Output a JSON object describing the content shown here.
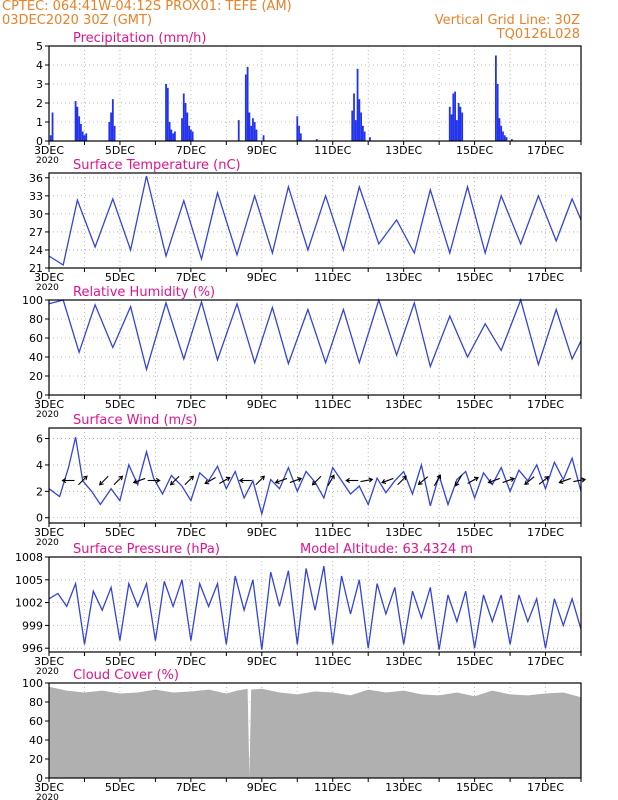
{
  "header": {
    "line1": "CPTEC:   064:41W-04:12S   PROX01: TEFE (AM)",
    "line2": "03DEC2020 30Z (GMT)",
    "grid_note": "Vertical Grid Line: 30Z",
    "model_id": "TQ0126L028",
    "model_altitude": "Model Altitude: 63.4324 m"
  },
  "colors": {
    "header": "#e6822a",
    "title": "#e0148c",
    "series": "#3344dd",
    "bar": "#2233ee",
    "cloud": "#b0b0b0",
    "arrow": "#000000",
    "frame": "#000000",
    "grid": "#aaaaaa"
  },
  "x_axis": {
    "days_start": 3,
    "days_end": 18,
    "tick_labels": [
      "3DEC",
      "5DEC",
      "7DEC",
      "9DEC",
      "11DEC",
      "13DEC",
      "15DEC",
      "17DEC"
    ],
    "tick_days": [
      3,
      5,
      7,
      9,
      11,
      13,
      15,
      17
    ],
    "corner_label": "2020"
  },
  "chart_data": [
    {
      "type": "bar",
      "name": "precip",
      "title": "Precipitation (mm/h)",
      "ylim": [
        0,
        5
      ],
      "yticks": [
        0,
        1,
        2,
        3,
        4,
        5
      ],
      "x": [
        3.05,
        3.1,
        3.75,
        3.8,
        3.85,
        3.9,
        3.95,
        4.0,
        4.05,
        4.7,
        4.75,
        4.8,
        4.85,
        6.3,
        6.35,
        6.4,
        6.45,
        6.5,
        6.55,
        6.75,
        6.8,
        6.85,
        6.9,
        6.95,
        7.0,
        7.05,
        8.35,
        8.55,
        8.6,
        8.65,
        8.7,
        8.75,
        8.8,
        8.85,
        9.05,
        10.0,
        10.05,
        10.1,
        10.55,
        11.55,
        11.6,
        11.65,
        11.7,
        11.75,
        11.8,
        11.85,
        11.9,
        12.05,
        14.3,
        14.35,
        14.4,
        14.45,
        14.5,
        14.55,
        14.6,
        14.65,
        15.6,
        15.65,
        15.7,
        15.75,
        15.8,
        15.85,
        15.9,
        16.05
      ],
      "values": [
        0.3,
        1.5,
        2.1,
        1.8,
        1.3,
        0.9,
        0.5,
        0.3,
        0.4,
        1.0,
        1.5,
        2.2,
        0.8,
        3.0,
        2.8,
        1.0,
        0.6,
        0.4,
        0.5,
        1.2,
        2.5,
        2.0,
        1.5,
        0.8,
        0.6,
        0.5,
        1.1,
        3.5,
        3.9,
        1.5,
        0.8,
        1.2,
        1.0,
        0.6,
        0.3,
        1.3,
        0.8,
        0.4,
        0.1,
        1.6,
        2.5,
        1.1,
        3.8,
        2.2,
        1.5,
        0.8,
        0.5,
        0.2,
        1.8,
        1.4,
        2.5,
        2.6,
        1.1,
        2.0,
        1.8,
        1.5,
        4.5,
        3.0,
        1.2,
        0.8,
        0.5,
        0.3,
        0.2,
        0.1
      ]
    },
    {
      "type": "line",
      "name": "temp",
      "title": "Surface Temperature (nC)",
      "ylim": [
        21,
        36.8
      ],
      "yticks": [
        21,
        24,
        27,
        30,
        33,
        36
      ],
      "x": [
        3.0,
        3.4,
        3.8,
        4.3,
        4.8,
        5.3,
        5.75,
        6.3,
        6.8,
        7.3,
        7.75,
        8.3,
        8.8,
        9.3,
        9.75,
        10.3,
        10.8,
        11.3,
        11.75,
        12.3,
        12.8,
        13.3,
        13.75,
        14.3,
        14.8,
        15.3,
        15.75,
        16.3,
        16.8,
        17.3,
        17.75,
        18.0
      ],
      "values": [
        23.0,
        21.5,
        32.3,
        24.5,
        32.5,
        24.0,
        36.3,
        23.0,
        32.2,
        22.5,
        33.5,
        23.2,
        33.0,
        23.5,
        34.5,
        24.0,
        33.0,
        24.0,
        34.5,
        25.0,
        29.0,
        23.5,
        34.0,
        23.5,
        34.5,
        23.5,
        33.0,
        25.0,
        33.0,
        25.5,
        32.5,
        29.0
      ]
    },
    {
      "type": "line",
      "name": "rh",
      "title": "Relative Humidity (%)",
      "ylim": [
        0,
        100
      ],
      "yticks": [
        0,
        20,
        40,
        60,
        80,
        100
      ],
      "x": [
        3.0,
        3.4,
        3.85,
        4.3,
        4.8,
        5.3,
        5.75,
        6.3,
        6.8,
        7.3,
        7.75,
        8.3,
        8.8,
        9.3,
        9.75,
        10.3,
        10.8,
        11.3,
        11.75,
        12.3,
        12.8,
        13.3,
        13.75,
        14.3,
        14.8,
        15.3,
        15.75,
        16.3,
        16.8,
        17.3,
        17.75,
        18.0
      ],
      "values": [
        96,
        100,
        45,
        95,
        50,
        93,
        27,
        97,
        38,
        98,
        37,
        96,
        34,
        92,
        33,
        90,
        34,
        90,
        34,
        100,
        42,
        97,
        30,
        83,
        40,
        75,
        47,
        100,
        32,
        90,
        38,
        57
      ]
    },
    {
      "type": "line",
      "name": "wind",
      "title": "Surface Wind (m/s)",
      "ylim": [
        -0.4,
        6.8
      ],
      "yticks": [
        0,
        2,
        4,
        6
      ],
      "x": [
        3.0,
        3.3,
        3.55,
        3.75,
        3.95,
        4.2,
        4.45,
        4.75,
        5.0,
        5.25,
        5.5,
        5.75,
        5.95,
        6.2,
        6.45,
        6.75,
        7.0,
        7.25,
        7.5,
        7.75,
        8.0,
        8.25,
        8.5,
        8.75,
        9.0,
        9.25,
        9.5,
        9.75,
        10.0,
        10.25,
        10.5,
        10.75,
        11.0,
        11.25,
        11.5,
        11.75,
        12.0,
        12.25,
        12.5,
        12.75,
        13.0,
        13.25,
        13.5,
        13.75,
        14.0,
        14.25,
        14.5,
        14.75,
        15.0,
        15.25,
        15.5,
        15.75,
        16.0,
        16.25,
        16.5,
        16.75,
        17.0,
        17.25,
        17.5,
        17.75,
        18.0
      ],
      "values": [
        2.2,
        1.6,
        3.8,
        6.1,
        2.8,
        2.0,
        1.0,
        2.2,
        1.3,
        4.0,
        2.5,
        5.0,
        3.0,
        1.8,
        3.2,
        2.4,
        1.3,
        3.4,
        2.8,
        3.9,
        2.2,
        3.5,
        1.5,
        2.8,
        0.3,
        2.9,
        2.2,
        3.8,
        2.0,
        3.5,
        2.7,
        1.5,
        3.8,
        2.8,
        1.8,
        2.4,
        1.0,
        3.0,
        1.9,
        2.8,
        3.5,
        1.8,
        4.0,
        0.9,
        3.2,
        1.0,
        2.9,
        3.5,
        1.5,
        3.4,
        2.5,
        3.8,
        2.0,
        3.6,
        2.8,
        4.0,
        2.2,
        4.2,
        2.9,
        4.5,
        2.0
      ],
      "arrows": [
        {
          "day": 3.55,
          "dir": 180,
          "speed": 1
        },
        {
          "day": 3.95,
          "dir": 45,
          "speed": 1
        },
        {
          "day": 4.55,
          "dir": 225,
          "speed": 1
        },
        {
          "day": 4.95,
          "dir": 45,
          "speed": 1
        },
        {
          "day": 5.55,
          "dir": 200,
          "speed": 1
        },
        {
          "day": 5.95,
          "dir": 0,
          "speed": 1
        },
        {
          "day": 6.55,
          "dir": 225,
          "speed": 1
        },
        {
          "day": 6.95,
          "dir": 45,
          "speed": 1
        },
        {
          "day": 7.55,
          "dir": 210,
          "speed": 1
        },
        {
          "day": 7.95,
          "dir": 30,
          "speed": 1
        },
        {
          "day": 8.55,
          "dir": 180,
          "speed": 1
        },
        {
          "day": 8.95,
          "dir": 45,
          "speed": 1
        },
        {
          "day": 9.55,
          "dir": 200,
          "speed": 1
        },
        {
          "day": 9.95,
          "dir": 20,
          "speed": 1
        },
        {
          "day": 10.55,
          "dir": 225,
          "speed": 1
        },
        {
          "day": 10.95,
          "dir": 60,
          "speed": 1
        },
        {
          "day": 11.55,
          "dir": 180,
          "speed": 1
        },
        {
          "day": 11.95,
          "dir": 10,
          "speed": 1
        },
        {
          "day": 12.55,
          "dir": 200,
          "speed": 1
        },
        {
          "day": 12.95,
          "dir": 45,
          "speed": 1
        },
        {
          "day": 13.55,
          "dir": 220,
          "speed": 1
        },
        {
          "day": 13.95,
          "dir": 60,
          "speed": 1
        },
        {
          "day": 14.55,
          "dir": 240,
          "speed": 1
        },
        {
          "day": 14.95,
          "dir": 30,
          "speed": 1
        },
        {
          "day": 15.55,
          "dir": 200,
          "speed": 1
        },
        {
          "day": 15.95,
          "dir": 20,
          "speed": 1
        },
        {
          "day": 16.55,
          "dir": 220,
          "speed": 1
        },
        {
          "day": 16.95,
          "dir": 40,
          "speed": 1
        },
        {
          "day": 17.55,
          "dir": 200,
          "speed": 1
        },
        {
          "day": 17.95,
          "dir": 10,
          "speed": 1
        }
      ]
    },
    {
      "type": "line",
      "name": "pressure",
      "title": "Surface Pressure (hPa)",
      "ylim": [
        995.5,
        1008
      ],
      "yticks": [
        996,
        999,
        1002,
        1005,
        1008
      ],
      "x": [
        3.0,
        3.25,
        3.5,
        3.75,
        4.0,
        4.25,
        4.5,
        4.75,
        5.0,
        5.25,
        5.5,
        5.75,
        6.0,
        6.25,
        6.5,
        6.75,
        7.0,
        7.25,
        7.5,
        7.75,
        8.0,
        8.25,
        8.5,
        8.75,
        9.0,
        9.25,
        9.5,
        9.75,
        10.0,
        10.25,
        10.5,
        10.75,
        11.0,
        11.25,
        11.5,
        11.75,
        12.0,
        12.25,
        12.5,
        12.75,
        13.0,
        13.25,
        13.5,
        13.75,
        14.0,
        14.25,
        14.5,
        14.75,
        15.0,
        15.25,
        15.5,
        15.75,
        16.0,
        16.25,
        16.5,
        16.75,
        17.0,
        17.25,
        17.5,
        17.75,
        18.0
      ],
      "values": [
        1002.5,
        1003.2,
        1001.5,
        1004.5,
        996.5,
        1003.5,
        1001.0,
        1004.0,
        997.0,
        1004.5,
        1001.5,
        1004.5,
        997.0,
        1004.8,
        1001.5,
        1005.0,
        997.0,
        1004.5,
        1001.5,
        1004.5,
        996.5,
        1005.5,
        1001.0,
        1005.0,
        995.8,
        1006.0,
        1001.5,
        1006.2,
        996.5,
        1006.5,
        1001.0,
        1006.8,
        996.5,
        1005.5,
        1000.5,
        1005.0,
        996.0,
        1004.5,
        1000.5,
        1004.0,
        996.5,
        1003.5,
        1000.0,
        1004.0,
        995.8,
        1003.0,
        999.5,
        1003.5,
        996.0,
        1003.0,
        999.5,
        1003.0,
        996.5,
        1003.0,
        999.5,
        1002.5,
        996.0,
        1002.5,
        999.0,
        1002.5,
        998.5
      ]
    },
    {
      "type": "area",
      "name": "cloud",
      "title": "Cloud Cover (%)",
      "ylim": [
        0,
        100
      ],
      "yticks": [
        0,
        20,
        40,
        60,
        80,
        100
      ],
      "x": [
        3.0,
        3.5,
        4.0,
        4.5,
        5.0,
        5.5,
        6.0,
        6.5,
        7.0,
        7.5,
        8.0,
        8.3,
        8.6,
        8.65,
        8.7,
        9.0,
        9.5,
        10.0,
        10.5,
        11.0,
        11.5,
        12.0,
        12.5,
        13.0,
        13.5,
        14.0,
        14.5,
        15.0,
        15.5,
        16.0,
        16.5,
        17.0,
        17.5,
        18.0
      ],
      "values": [
        96,
        92,
        90,
        92,
        89,
        90,
        93,
        90,
        91,
        93,
        89,
        92,
        94,
        1,
        93,
        94,
        90,
        88,
        91,
        90,
        87,
        93,
        90,
        92,
        88,
        87,
        90,
        86,
        92,
        88,
        87,
        89,
        90,
        85
      ]
    }
  ]
}
